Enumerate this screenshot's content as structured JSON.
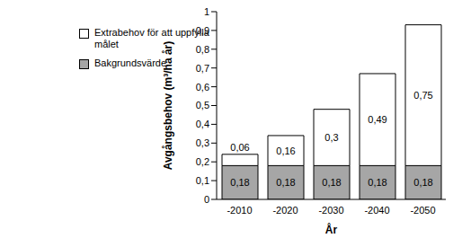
{
  "chart_data": {
    "type": "bar",
    "stacked": true,
    "data_labels": true,
    "grid": false,
    "legend": "top-left",
    "x_label": "År",
    "y_label": "Avgångsbehov (m³/ha år)",
    "categories": [
      "-2010",
      "-2020",
      "-2030",
      "-2040",
      "-2050"
    ],
    "ylim": [
      0,
      1
    ],
    "yticks": [
      0,
      {
        "value": 0.1,
        "label": "0,1"
      },
      {
        "value": 0.2,
        "label": "0,2"
      },
      {
        "value": 0.3,
        "label": "0,3"
      },
      {
        "value": 0.4,
        "label": "0,4"
      },
      {
        "value": 0.5,
        "label": "0,5"
      },
      {
        "value": 0.6,
        "label": "0,6"
      },
      {
        "value": 0.7,
        "label": "0,7"
      },
      {
        "value": 0.8,
        "label": "0,8"
      },
      {
        "value": 0.9,
        "label": "0,9"
      },
      1
    ],
    "series": [
      {
        "name": "Extrabehov för att uppfylla målet",
        "color": "#ffffff",
        "values": [
          0.06,
          0.16,
          0.3,
          0.49,
          0.75
        ],
        "value_labels": [
          "0,06",
          "0,16",
          "0,3",
          "0,49",
          "0,75"
        ]
      },
      {
        "name": "Bakgrundsvärde",
        "color": "#a6a6a6",
        "values": [
          0.18,
          0.18,
          0.18,
          0.18,
          0.18
        ],
        "value_labels": [
          "0,18",
          "0,18",
          "0,18",
          "0,18",
          "0,18"
        ]
      }
    ]
  }
}
